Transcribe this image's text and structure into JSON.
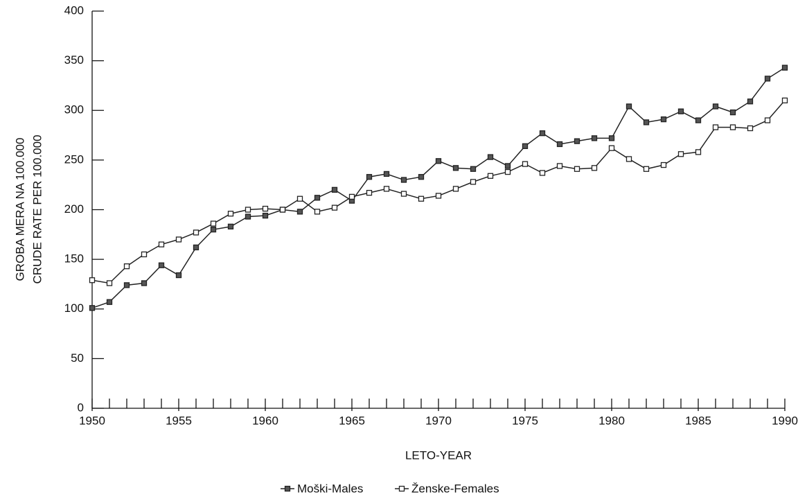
{
  "chart_data": {
    "type": "line",
    "ylabel": [
      "GROBA MERA NA 100.000",
      "CRUDE RATE PER 100.000"
    ],
    "xlabel": "LETO-YEAR",
    "x": [
      1950,
      1951,
      1952,
      1953,
      1954,
      1955,
      1956,
      1957,
      1958,
      1959,
      1960,
      1961,
      1962,
      1963,
      1964,
      1965,
      1966,
      1967,
      1968,
      1969,
      1970,
      1971,
      1972,
      1973,
      1974,
      1975,
      1976,
      1977,
      1978,
      1979,
      1980,
      1981,
      1982,
      1983,
      1984,
      1985,
      1986,
      1987,
      1988,
      1989,
      1990
    ],
    "series": [
      {
        "name": "Moški-Males",
        "color": "#222222",
        "marker": "filled",
        "values": [
          101,
          107,
          124,
          126,
          144,
          134,
          162,
          180,
          183,
          193,
          194,
          200,
          198,
          212,
          220,
          209,
          233,
          236,
          230,
          233,
          249,
          242,
          241,
          253,
          244,
          264,
          277,
          266,
          269,
          272,
          272,
          304,
          288,
          291,
          299,
          290,
          304,
          298,
          309,
          332,
          343
        ]
      },
      {
        "name": "Ženske-Females",
        "color": "#222222",
        "marker": "open",
        "values": [
          129,
          126,
          143,
          155,
          165,
          170,
          177,
          186,
          196,
          200,
          201,
          200,
          211,
          198,
          202,
          213,
          217,
          221,
          216,
          211,
          214,
          221,
          228,
          234,
          238,
          246,
          237,
          244,
          241,
          242,
          262,
          251,
          241,
          245,
          256,
          258,
          283,
          283,
          282,
          290,
          310
        ]
      }
    ],
    "xlim": [
      1950,
      1990
    ],
    "xticks": [
      1950,
      1955,
      1960,
      1965,
      1970,
      1975,
      1980,
      1985,
      1990
    ],
    "ylim": [
      0,
      400
    ],
    "yticks": [
      0,
      50,
      100,
      150,
      200,
      250,
      300,
      350,
      400
    ]
  }
}
